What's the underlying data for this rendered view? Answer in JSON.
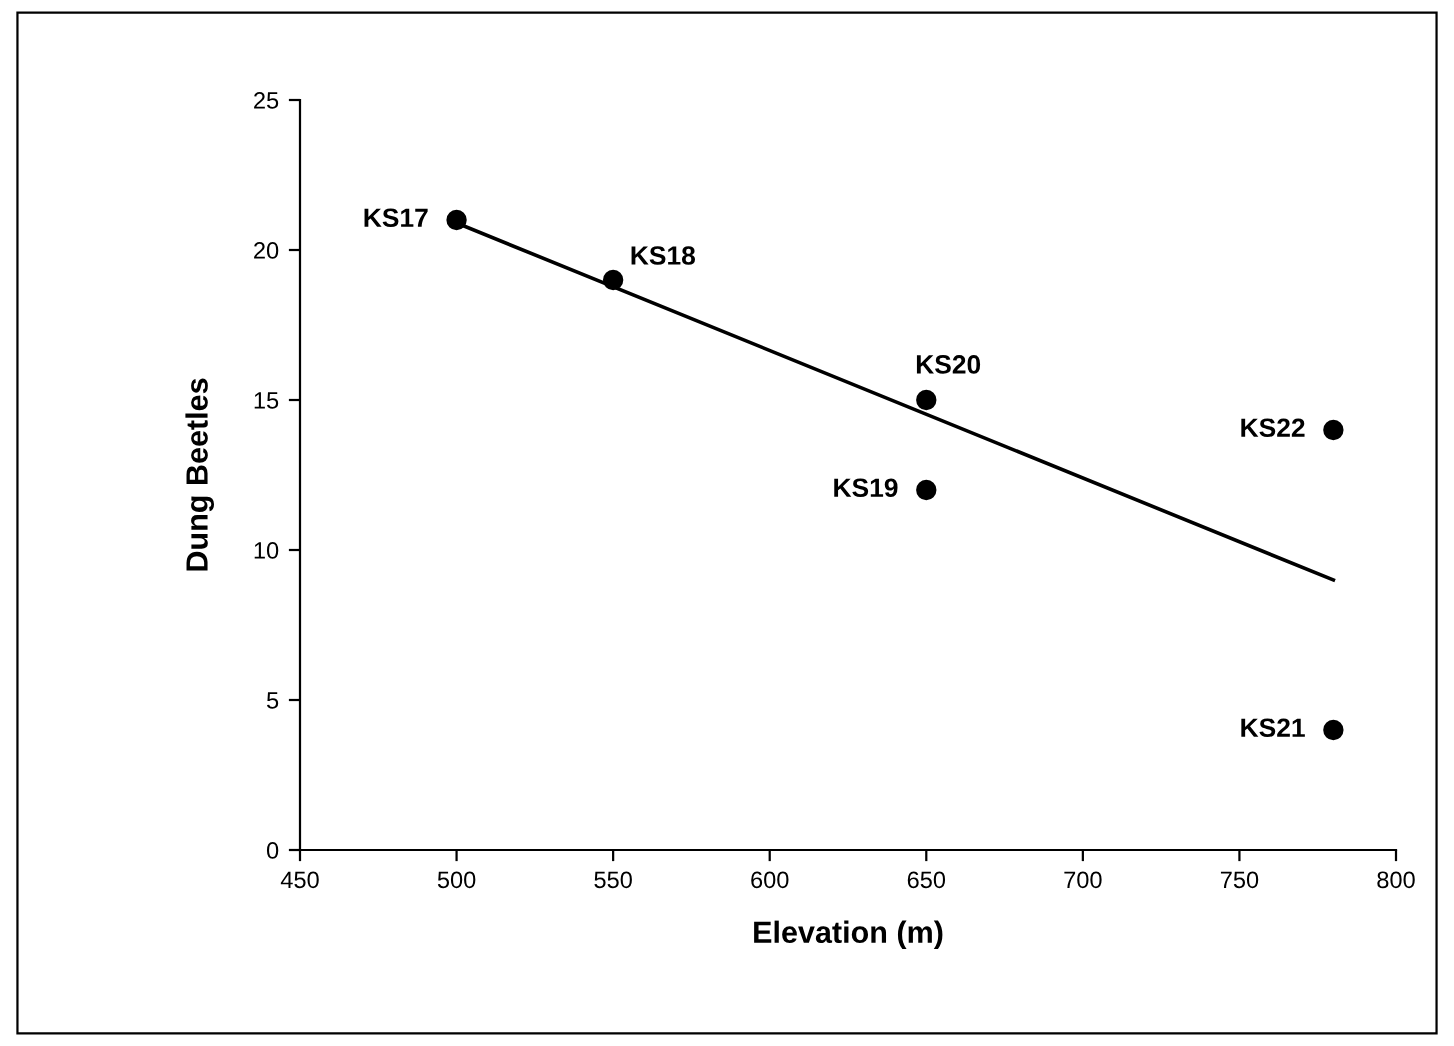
{
  "chart_data": {
    "type": "scatter",
    "xlabel": "Elevation (m)",
    "ylabel": "Dung Beetles",
    "xlim": [
      450,
      800
    ],
    "xticks": [
      450,
      500,
      550,
      600,
      650,
      700,
      750,
      800
    ],
    "ylim": [
      0,
      25
    ],
    "yticks": [
      0,
      5,
      10,
      15,
      20,
      25
    ],
    "grid": false,
    "legend": false,
    "marker": "circle",
    "series": [
      {
        "color": "#000000",
        "x": [
          500,
          550,
          650,
          650,
          780,
          780
        ],
        "values": [
          21,
          19,
          15,
          12,
          14,
          4
        ]
      },
      {
        "type": "line",
        "color": "#000000",
        "x": [
          500,
          780
        ],
        "values": [
          20.9,
          9.0
        ],
        "marker": "none",
        "line_style": "solid"
      }
    ],
    "annotations": [
      {
        "text": "KS17",
        "x": 500,
        "y": 21
      },
      {
        "text": "KS18",
        "x": 550,
        "y": 19
      },
      {
        "text": "KS20",
        "x": 650,
        "y": 15
      },
      {
        "text": "KS19",
        "x": 650,
        "y": 12
      },
      {
        "text": "KS22",
        "x": 780,
        "y": 14
      },
      {
        "text": "KS21",
        "x": 780,
        "y": 4
      }
    ]
  }
}
